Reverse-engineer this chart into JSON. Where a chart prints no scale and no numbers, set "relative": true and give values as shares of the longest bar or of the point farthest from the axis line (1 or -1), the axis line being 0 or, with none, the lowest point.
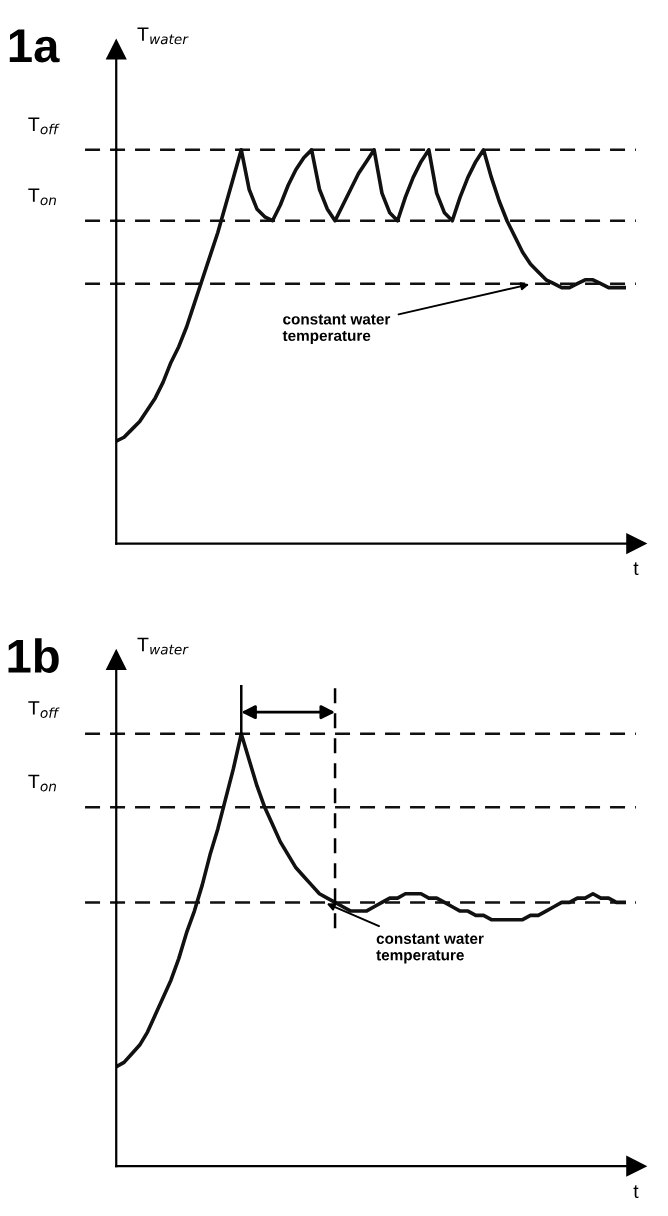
{
  "chart_data": [
    {
      "type": "line",
      "title": "1a",
      "ylabel": "T$_{water}$",
      "xlabel": "t",
      "relative": true,
      "marker": "none",
      "line_style": "solid",
      "tick_labels": false,
      "categories": [
        null,
        null,
        null,
        null,
        null,
        null,
        null,
        null,
        null,
        null,
        null,
        null,
        null,
        null,
        null,
        null,
        null,
        null,
        null,
        null,
        null,
        null,
        null,
        null,
        null,
        null,
        null,
        null,
        null,
        null,
        null,
        null,
        null,
        null,
        null,
        null,
        null,
        null,
        null,
        null,
        null,
        null,
        null,
        null,
        null,
        null,
        null,
        null,
        null,
        null,
        null,
        null,
        null,
        null,
        null,
        null,
        null,
        null,
        null,
        null,
        null,
        null,
        null,
        null,
        null,
        null
      ],
      "series": [
        {
          "color": "#111111",
          "values": [
            0.26,
            0.27,
            0.29,
            0.31,
            0.34,
            0.37,
            0.41,
            0.46,
            0.5,
            0.55,
            0.61,
            0.67,
            0.73,
            0.79,
            0.86,
            0.93,
            1,
            0.9,
            0.85,
            0.83,
            0.82,
            0.86,
            0.91,
            0.95,
            0.98,
            1,
            0.9,
            0.85,
            0.82,
            0.86,
            0.9,
            0.94,
            0.97,
            1,
            0.89,
            0.84,
            0.82,
            0.88,
            0.93,
            0.97,
            1,
            0.89,
            0.84,
            0.82,
            0.88,
            0.93,
            0.97,
            1,
            0.93,
            0.87,
            0.82,
            0.78,
            0.74,
            0.71,
            0.69,
            0.67,
            0.66,
            0.65,
            0.65,
            0.66,
            0.67,
            0.67,
            0.66,
            0.65,
            0.65,
            0.65
          ]
        }
      ],
      "ref_lines": [
        {
          "axis": "y",
          "value": 1,
          "label": "T$_{off}$",
          "line_style": "dashed",
          "color": "#111111"
        },
        {
          "axis": "y",
          "value": 0.82,
          "label": "T$_{on}$",
          "line_style": "dashed",
          "color": "#111111"
        },
        {
          "axis": "y",
          "value": 0.66,
          "line_style": "dashed",
          "color": "#111111"
        }
      ],
      "annotations": [
        {
          "text": "constant water\ntemperature",
          "y": 0.66
        }
      ]
    },
    {
      "type": "line",
      "title": "1b",
      "ylabel": "T$_{water}$",
      "xlabel": "t",
      "relative": true,
      "marker": "none",
      "line_style": "solid",
      "tick_labels": false,
      "categories": [
        null,
        null,
        null,
        null,
        null,
        null,
        null,
        null,
        null,
        null,
        null,
        null,
        null,
        null,
        null,
        null,
        null,
        null,
        null,
        null,
        null,
        null,
        null,
        null,
        null,
        null,
        null,
        null,
        null,
        null,
        null,
        null,
        null,
        null,
        null,
        null,
        null,
        null,
        null,
        null,
        null,
        null,
        null,
        null,
        null,
        null,
        null,
        null,
        null,
        null,
        null,
        null,
        null,
        null,
        null,
        null,
        null,
        null,
        null,
        null,
        null,
        null,
        null,
        null,
        null,
        null
      ],
      "series": [
        {
          "color": "#111111",
          "values": [
            0.23,
            0.24,
            0.26,
            0.28,
            0.31,
            0.35,
            0.39,
            0.43,
            0.48,
            0.54,
            0.59,
            0.65,
            0.72,
            0.78,
            0.85,
            0.92,
            1,
            0.94,
            0.88,
            0.83,
            0.79,
            0.75,
            0.72,
            0.69,
            0.67,
            0.65,
            0.63,
            0.62,
            0.61,
            0.6,
            0.59,
            0.59,
            0.59,
            0.6,
            0.61,
            0.62,
            0.62,
            0.63,
            0.63,
            0.63,
            0.62,
            0.62,
            0.61,
            0.6,
            0.59,
            0.59,
            0.58,
            0.58,
            0.57,
            0.57,
            0.57,
            0.57,
            0.57,
            0.58,
            0.58,
            0.59,
            0.6,
            0.61,
            0.61,
            0.62,
            0.62,
            0.63,
            0.62,
            0.62,
            0.61,
            0.61
          ]
        }
      ],
      "ref_lines": [
        {
          "axis": "y",
          "value": 1,
          "label": "T$_{off}$",
          "line_style": "dashed",
          "color": "#111111"
        },
        {
          "axis": "y",
          "value": 0.83,
          "label": "T$_{on}$",
          "line_style": "dashed",
          "color": "#111111"
        },
        {
          "axis": "y",
          "value": 0.61,
          "line_style": "dashed",
          "color": "#111111"
        }
      ],
      "annotations": [
        {
          "text": "constant water\ntemperature",
          "y": 0.61
        }
      ]
    }
  ]
}
